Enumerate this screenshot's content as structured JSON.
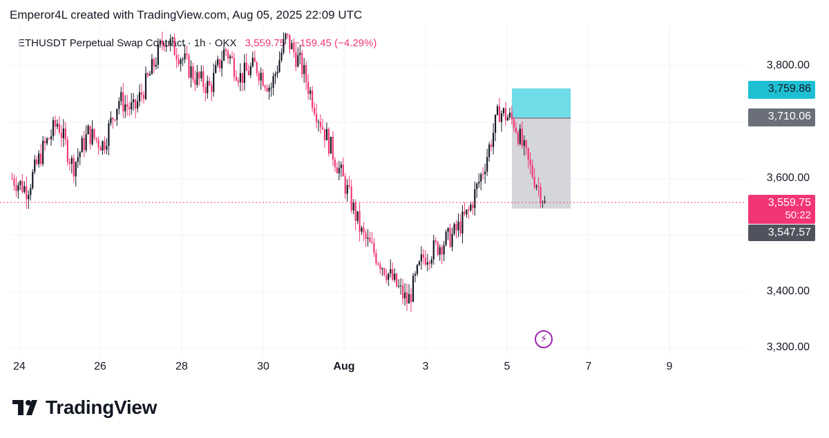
{
  "header": {
    "text": "Emperor4L created with TradingView.com, Aug 05, 2025 22:09 UTC"
  },
  "legend": {
    "symbol": "ETHUSDT Perpetual Swap Contract · 1h · OKX",
    "price": "3,559.75",
    "change": "−159.45 (−4.29%)"
  },
  "colors": {
    "up": "#131722",
    "down": "#f23673",
    "target": "#1fbfd3",
    "stop": "#6b6f7a"
  },
  "chart_data": {
    "type": "candlestick",
    "interval": "1h",
    "x_ticks": [
      "24",
      "26",
      "28",
      "30",
      "Aug",
      "3",
      "5",
      "7",
      "9"
    ],
    "y_ticks": [
      "3,300.00",
      "3,400.00",
      "3,600.00",
      "3,800.00"
    ],
    "ylim": [
      3280,
      3880
    ],
    "last_price": 3559.75,
    "path_points": [
      [
        0,
        3600
      ],
      [
        4,
        3580
      ],
      [
        8,
        3650
      ],
      [
        12,
        3700
      ],
      [
        16,
        3620
      ],
      [
        20,
        3680
      ],
      [
        24,
        3660
      ],
      [
        28,
        3740
      ],
      [
        32,
        3720
      ],
      [
        36,
        3780
      ],
      [
        40,
        3850
      ],
      [
        44,
        3820
      ],
      [
        48,
        3780
      ],
      [
        52,
        3760
      ],
      [
        56,
        3830
      ],
      [
        60,
        3780
      ],
      [
        64,
        3800
      ],
      [
        68,
        3760
      ],
      [
        72,
        3850
      ],
      [
        76,
        3800
      ],
      [
        80,
        3720
      ],
      [
        84,
        3650
      ],
      [
        88,
        3580
      ],
      [
        92,
        3500
      ],
      [
        96,
        3460
      ],
      [
        100,
        3420
      ],
      [
        104,
        3380
      ],
      [
        108,
        3460
      ],
      [
        112,
        3480
      ],
      [
        116,
        3500
      ],
      [
        120,
        3540
      ],
      [
        124,
        3620
      ],
      [
        128,
        3720
      ],
      [
        132,
        3700
      ],
      [
        136,
        3620
      ],
      [
        140,
        3560
      ]
    ],
    "position": {
      "target": "3,759.86",
      "entry": "3,710.06",
      "current": "3,559.75",
      "timer": "50:22",
      "stop": "3,547.57"
    }
  }
}
